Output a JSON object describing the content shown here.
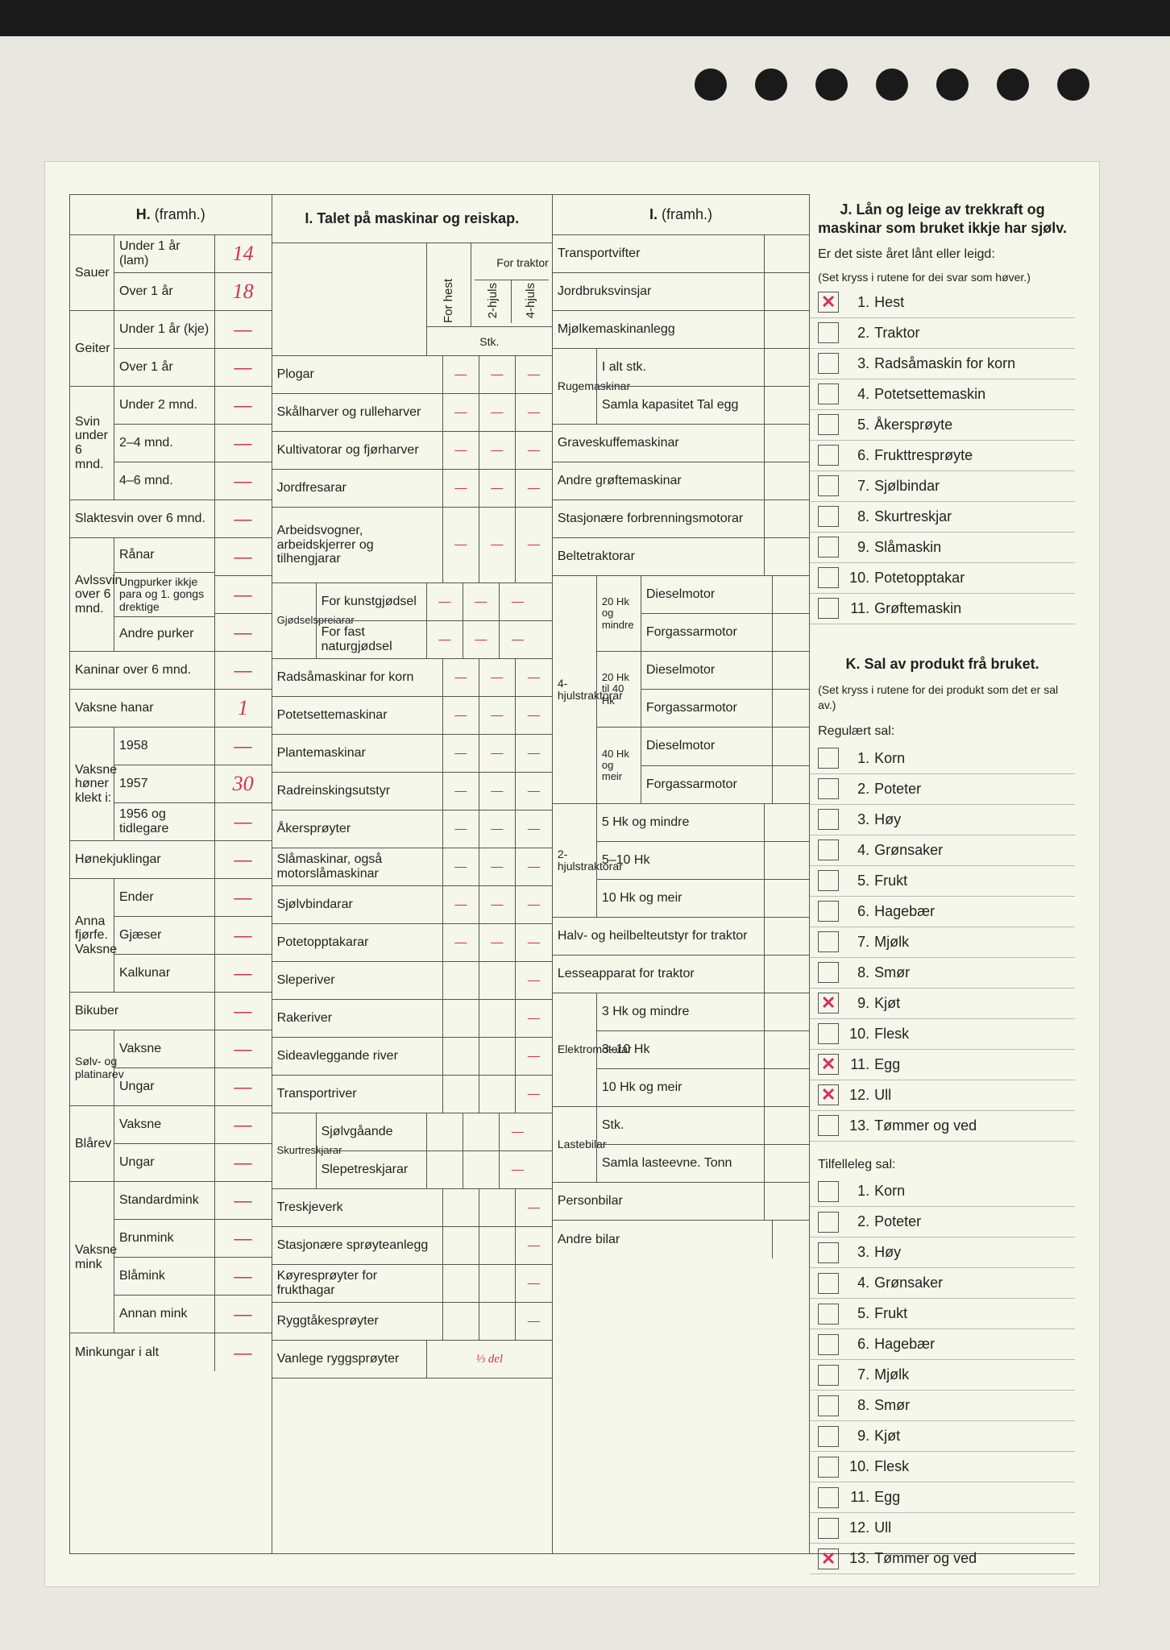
{
  "sections": {
    "H": {
      "title": "H.",
      "cont": "(framh.)"
    },
    "I1": {
      "title": "I. Talet på maskinar og reiskap."
    },
    "I2": {
      "title": "I.",
      "cont": "(framh.)"
    },
    "J": {
      "title": "J. Lån og leige av trekkraft og maskinar som bruket ikkje har sjølv."
    },
    "K": {
      "title": "K. Sal av produkt frå bruket."
    }
  },
  "H": {
    "sauer_under1_lbl": "Under 1 år (lam)",
    "sauer_under1_val": "14",
    "sauer_over1_lbl": "Over 1 år",
    "sauer_over1_val": "18",
    "sauer_side": "Sauer",
    "geiter_under1_lbl": "Under 1 år (kje)",
    "geiter_under1_val": "—",
    "geiter_over1_lbl": "Over 1 år",
    "geiter_over1_val": "—",
    "geiter_side": "Geiter",
    "svin_side": "Svin under 6 mnd.",
    "svin_u2_lbl": "Under 2 mnd.",
    "svin_u2_val": "—",
    "svin_24_lbl": "2–4 mnd.",
    "svin_24_val": "—",
    "svin_46_lbl": "4–6 mnd.",
    "svin_46_val": "—",
    "slaktesvin_lbl": "Slaktesvin over 6 mnd.",
    "slaktesvin_val": "—",
    "avlssvin_side": "Avlssvin over 6 mnd.",
    "ranar_lbl": "Rånar",
    "ranar_val": "—",
    "ungpurker_lbl": "Ungpurker ikkje para og 1. gongs drektige",
    "ungpurker_val": "—",
    "andrepurker_lbl": "Andre purker",
    "andrepurker_val": "—",
    "kaninar_lbl": "Kaninar over 6 mnd.",
    "kaninar_val": "—",
    "vaksnehanar_lbl": "Vaksne hanar",
    "vaksnehanar_val": "1",
    "honer_side": "Vaksne høner klekt i:",
    "h1958_lbl": "1958",
    "h1958_val": "—",
    "h1957_lbl": "1957",
    "h1957_val": "30",
    "h1956_lbl": "1956 og tidlegare",
    "h1956_val": "—",
    "honekjuk_lbl": "Hønekjuklingar",
    "honekjuk_val": "—",
    "annafjorfe_side": "Anna fjørfe. Vaksne",
    "ender_lbl": "Ender",
    "ender_val": "—",
    "gjaeser_lbl": "Gjæser",
    "gjaeser_val": "—",
    "kalkunar_lbl": "Kalkunar",
    "kalkunar_val": "—",
    "bikuber_lbl": "Bikuber",
    "bikuber_val": "—",
    "solvrev_side": "Sølv- og platinarev",
    "solvrev_vaksne_lbl": "Vaksne",
    "solvrev_vaksne_val": "—",
    "solvrev_ungar_lbl": "Ungar",
    "solvrev_ungar_val": "—",
    "blarev_side": "Blårev",
    "blarev_vaksne_lbl": "Vaksne",
    "blarev_vaksne_val": "—",
    "blarev_ungar_lbl": "Ungar",
    "blarev_ungar_val": "—",
    "mink_side": "Vaksne mink",
    "standardmink_lbl": "Standardmink",
    "standardmink_val": "—",
    "brunmink_lbl": "Brunmink",
    "brunmink_val": "—",
    "blamink_lbl": "Blåmink",
    "blamink_val": "—",
    "annanmink_lbl": "Annan mink",
    "annanmink_val": "—",
    "minkungar_lbl": "Minkungar i alt",
    "minkungar_val": "—"
  },
  "I1": {
    "sub_forhest": "For hest",
    "sub_traktor": "For traktor",
    "sub_2hjuls": "2-hjuls",
    "sub_4hjuls": "4-hjuls",
    "sub_stk": "Stk.",
    "items": {
      "plogar": "Plogar",
      "skalharver": "Skålharver og rulleharver",
      "kultivatorar": "Kultivatorar og fjørharver",
      "jordfresarar": "Jordfresarar",
      "arbeidsvogner": "Arbeidsvogner, arbeidskjerrer og tilhengjarar",
      "gjodsel_side": "Gjødselspreiarar",
      "gjodsel_kunst": "For kunstgjødsel",
      "gjodsel_fast": "For fast naturgjødsel",
      "radsamaskinar": "Radsåmaskinar for korn",
      "potetsette": "Potetsettemaskinar",
      "plante": "Plantemaskinar",
      "radreinsking": "Radreinskingsutstyr",
      "akersproyter": "Åkersprøyter",
      "slamaskinar": "Slåmaskinar, også motorslåmaskinar",
      "sjolvbindarar": "Sjølvbindarar",
      "potetopptakarar": "Potetopptakarar",
      "sleperiver": "Sleperiver",
      "rakeriver": "Rakeriver",
      "sideavlegg": "Sideavleggande river",
      "transportriver": "Transportriver",
      "skurtresk_side": "Skurtreskjarar",
      "skurtresk_sjolv": "Sjølvgåande",
      "skurtresk_slepe": "Slepetreskjarar",
      "treskjeverk": "Treskjeverk",
      "stasjonsproyte": "Stasjonære sprøyteanlegg",
      "koyresproyter": "Køyresprøyter for frukthagar",
      "ryggtake": "Ryggtåkesprøyter",
      "vanlegerygg": "Vanlege ryggsprøyter",
      "vanlegerygg_val": "⅓ del"
    }
  },
  "I2": {
    "transportvifter": "Transportvifter",
    "jordbruksvinsjar": "Jordbruksvinsjar",
    "mjolke": "Mjølkemaskinanlegg",
    "ruge_side": "Rugemaskinar",
    "ruge_ialt": "I alt stk.",
    "ruge_samla": "Samla kapasitet Tal egg",
    "graveskuffe": "Graveskuffemaskinar",
    "andregrofte": "Andre grøftemaskinar",
    "stasjonforbr": "Stasjonære forbrenningsmotorar",
    "beltetraktorar": "Beltetraktorar",
    "trak4_side": "4-hjulstraktorar",
    "trak4_20_side": "20 Hk og mindre",
    "trak4_2040_side": "20 Hk til 40 Hk",
    "trak4_40_side": "40 Hk og meir",
    "diesel": "Dieselmotor",
    "forgassar": "Forgassarmotor",
    "trak2_side": "2-hjulstraktorar",
    "trak2_5": "5 Hk og mindre",
    "trak2_510": "5–10 Hk",
    "trak2_10": "10 Hk og meir",
    "halvbelte": "Halv- og heilbelteutstyr for traktor",
    "lesseapparat": "Lesseapparat for traktor",
    "elektro_side": "Elektromotorar",
    "elektro_3": "3 Hk og mindre",
    "elektro_310": "3–10 Hk",
    "elektro_10": "10 Hk og meir",
    "laste_side": "Lastebilar",
    "laste_stk": "Stk.",
    "laste_samla": "Samla lasteevne. Tonn",
    "personbilar": "Personbilar",
    "andrebilar": "Andre bilar"
  },
  "J": {
    "intro": "Er det siste året lånt eller leigd:",
    "hint": "(Set kryss i rutene for dei svar som høver.)",
    "items": [
      {
        "n": "1.",
        "t": "Hest",
        "x": true
      },
      {
        "n": "2.",
        "t": "Traktor",
        "x": false
      },
      {
        "n": "3.",
        "t": "Radsåmaskin for korn",
        "x": false
      },
      {
        "n": "4.",
        "t": "Potetsettemaskin",
        "x": false
      },
      {
        "n": "5.",
        "t": "Åkersprøyte",
        "x": false
      },
      {
        "n": "6.",
        "t": "Frukttresprøyte",
        "x": false
      },
      {
        "n": "7.",
        "t": "Sjølbindar",
        "x": false
      },
      {
        "n": "8.",
        "t": "Skurtreskjar",
        "x": false
      },
      {
        "n": "9.",
        "t": "Slåmaskin",
        "x": false
      },
      {
        "n": "10.",
        "t": "Potetopptakar",
        "x": false
      },
      {
        "n": "11.",
        "t": "Grøftemaskin",
        "x": false
      }
    ]
  },
  "K": {
    "hint": "(Set kryss i rutene for dei produkt som det er sal av.)",
    "reg_title": "Regulært sal:",
    "reg": [
      {
        "n": "1.",
        "t": "Korn",
        "x": false
      },
      {
        "n": "2.",
        "t": "Poteter",
        "x": false
      },
      {
        "n": "3.",
        "t": "Høy",
        "x": false
      },
      {
        "n": "4.",
        "t": "Grønsaker",
        "x": false
      },
      {
        "n": "5.",
        "t": "Frukt",
        "x": false
      },
      {
        "n": "6.",
        "t": "Hagebær",
        "x": false
      },
      {
        "n": "7.",
        "t": "Mjølk",
        "x": false
      },
      {
        "n": "8.",
        "t": "Smør",
        "x": false
      },
      {
        "n": "9.",
        "t": "Kjøt",
        "x": true
      },
      {
        "n": "10.",
        "t": "Flesk",
        "x": false
      },
      {
        "n": "11.",
        "t": "Egg",
        "x": true
      },
      {
        "n": "12.",
        "t": "Ull",
        "x": true
      },
      {
        "n": "13.",
        "t": "Tømmer og ved",
        "x": false
      }
    ],
    "til_title": "Tilfelleleg sal:",
    "til": [
      {
        "n": "1.",
        "t": "Korn",
        "x": false
      },
      {
        "n": "2.",
        "t": "Poteter",
        "x": false
      },
      {
        "n": "3.",
        "t": "Høy",
        "x": false
      },
      {
        "n": "4.",
        "t": "Grønsaker",
        "x": false
      },
      {
        "n": "5.",
        "t": "Frukt",
        "x": false
      },
      {
        "n": "6.",
        "t": "Hagebær",
        "x": false
      },
      {
        "n": "7.",
        "t": "Mjølk",
        "x": false
      },
      {
        "n": "8.",
        "t": "Smør",
        "x": false
      },
      {
        "n": "9.",
        "t": "Kjøt",
        "x": false
      },
      {
        "n": "10.",
        "t": "Flesk",
        "x": false
      },
      {
        "n": "11.",
        "t": "Egg",
        "x": false
      },
      {
        "n": "12.",
        "t": "Ull",
        "x": false
      },
      {
        "n": "13.",
        "t": "Tømmer og ved",
        "x": true
      }
    ]
  }
}
